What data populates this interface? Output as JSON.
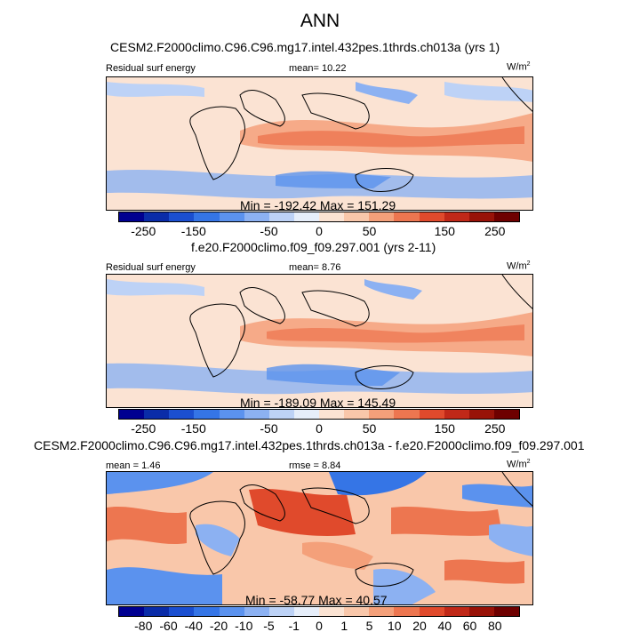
{
  "chart_data": [
    {
      "type": "heatmap",
      "title": "CESM2.F2000climo.C96.C96.mg17.intel.432pes.1thrds.ch013a (yrs 1)",
      "variable": "Residual surf energy",
      "mean_label": "mean=",
      "mean": "10.22",
      "units_base": "W/m",
      "units_exp": "2",
      "stats": "Min = -192.42 Max = 151.29",
      "min": -192.42,
      "max": 151.29,
      "colorbar_ticks": [
        "-250",
        "-150",
        "-50",
        "0",
        "50",
        "150",
        "250"
      ],
      "colorbar_colors": [
        "#000090",
        "#0a2ca8",
        "#1b4fd0",
        "#3575e6",
        "#5b92ee",
        "#8cb1f2",
        "#bdd2f6",
        "#e6eefa",
        "#fbe3d3",
        "#f9c7aa",
        "#f4a07a",
        "#ed7650",
        "#e04a2c",
        "#c02818",
        "#981208",
        "#6e0000"
      ]
    },
    {
      "type": "heatmap",
      "title": "f.e20.F2000climo.f09_f09.297.001 (yrs 2-11)",
      "variable": "Residual surf energy",
      "mean_label": "mean=",
      "mean": "8.76",
      "units_base": "W/m",
      "units_exp": "2",
      "stats": "Min = -189.09 Max = 145.49",
      "min": -189.09,
      "max": 145.49,
      "colorbar_ticks": [
        "-250",
        "-150",
        "-50",
        "0",
        "50",
        "150",
        "250"
      ],
      "colorbar_colors": [
        "#000090",
        "#0a2ca8",
        "#1b4fd0",
        "#3575e6",
        "#5b92ee",
        "#8cb1f2",
        "#bdd2f6",
        "#e6eefa",
        "#fbe3d3",
        "#f9c7aa",
        "#f4a07a",
        "#ed7650",
        "#e04a2c",
        "#c02818",
        "#981208",
        "#6e0000"
      ]
    },
    {
      "type": "heatmap",
      "title": "CESM2.F2000climo.C96.C96.mg17.intel.432pes.1thrds.ch013a - f.e20.F2000climo.f09_f09.297.001",
      "mean_label": "mean =",
      "mean": "1.46",
      "rmse_label": "rmse =",
      "rmse": "8.84",
      "units_base": "W/m",
      "units_exp": "2",
      "stats": "Min = -58.77 Max = 40.57",
      "min": -58.77,
      "max": 40.57,
      "colorbar_ticks": [
        "-80",
        "-60",
        "-40",
        "-20",
        "-10",
        "-5",
        "-1",
        "0",
        "1",
        "5",
        "10",
        "20",
        "40",
        "60",
        "80"
      ],
      "colorbar_colors": [
        "#000090",
        "#0a2ca8",
        "#1b4fd0",
        "#3575e6",
        "#5b92ee",
        "#8cb1f2",
        "#bdd2f6",
        "#e6eefa",
        "#fbe3d3",
        "#f9c7aa",
        "#f4a07a",
        "#ed7650",
        "#e04a2c",
        "#c02818",
        "#981208",
        "#6e0000"
      ]
    }
  ],
  "page": {
    "title": "ANN"
  }
}
